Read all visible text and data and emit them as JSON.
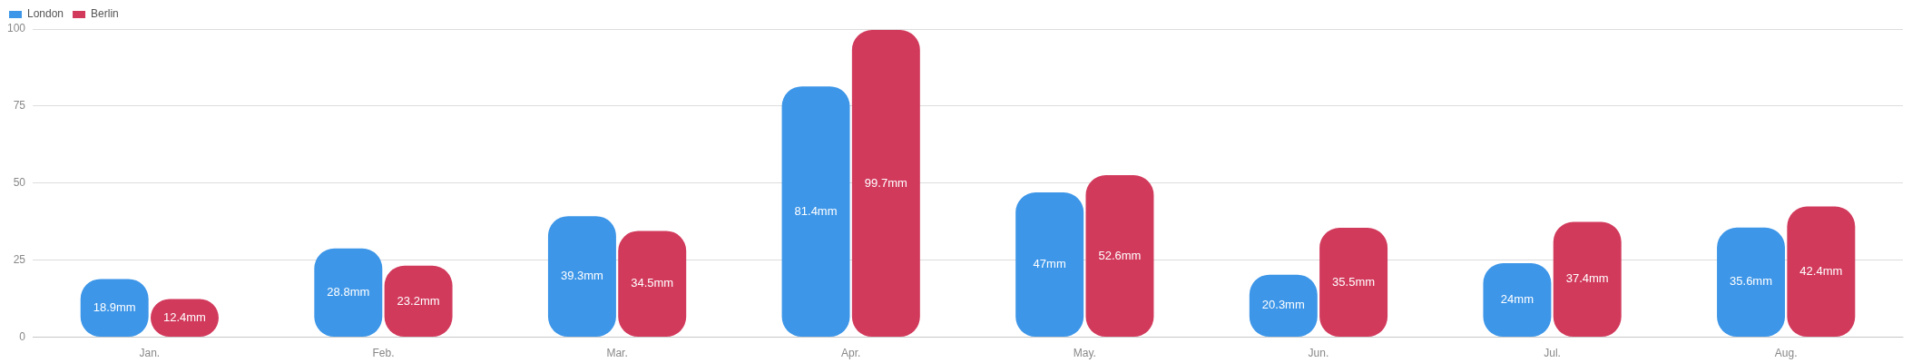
{
  "chart_data": {
    "type": "bar",
    "categories": [
      "Jan.",
      "Feb.",
      "Mar.",
      "Apr.",
      "May.",
      "Jun.",
      "Jul.",
      "Aug."
    ],
    "series": [
      {
        "name": "London",
        "color": "#3d96e8",
        "values": [
          18.9,
          28.8,
          39.3,
          81.4,
          47,
          20.3,
          24,
          35.6
        ],
        "value_labels": [
          "18.9mm",
          "28.8mm",
          "39.3mm",
          "81.4mm",
          "47mm",
          "20.3mm",
          "24mm",
          "35.6mm"
        ]
      },
      {
        "name": "Berlin",
        "color": "#d23a5c",
        "values": [
          12.4,
          23.2,
          34.5,
          99.7,
          52.6,
          35.5,
          37.4,
          42.4
        ],
        "value_labels": [
          "12.4mm",
          "23.2mm",
          "34.5mm",
          "99.7mm",
          "52.6mm",
          "35.5mm",
          "37.4mm",
          "42.4mm"
        ]
      }
    ],
    "ylim": [
      0,
      100
    ],
    "yticks": [
      0,
      25,
      50,
      75,
      100
    ],
    "grid": "y",
    "legend": "top left"
  }
}
